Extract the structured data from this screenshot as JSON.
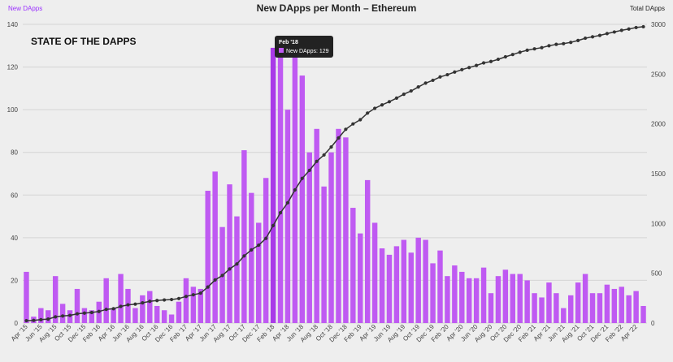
{
  "chart_data": {
    "type": "bar+line",
    "title": "New DApps per Month – Ethereum",
    "logo_text": "STATE OF THE DAPPS",
    "left_axis": {
      "label": "New DApps",
      "ylim": [
        0,
        140
      ],
      "ticks": [
        "0",
        "20",
        "40",
        "60",
        "80",
        "100",
        "120",
        "140"
      ]
    },
    "right_axis": {
      "label": "Total DApps",
      "ylim": [
        0,
        3000
      ],
      "ticks": [
        "0",
        "500",
        "1000",
        "1500",
        "2000",
        "2500",
        "3000"
      ]
    },
    "categories": [
      "Apr '15",
      "May '15",
      "Jun '15",
      "Jul '15",
      "Aug '15",
      "Sep '15",
      "Oct '15",
      "Nov '15",
      "Dec '15",
      "Jan '16",
      "Feb '16",
      "Mar '16",
      "Apr '16",
      "May '16",
      "Jun '16",
      "Jul '16",
      "Aug '16",
      "Sep '16",
      "Oct '16",
      "Nov '16",
      "Dec '16",
      "Jan '17",
      "Feb '17",
      "Mar '17",
      "Apr '17",
      "May '17",
      "Jun '17",
      "Jul '17",
      "Aug '17",
      "Sep '17",
      "Oct '17",
      "Nov '17",
      "Dec '17",
      "Jan '18",
      "Feb '18",
      "Mar '18",
      "Apr '18",
      "May '18",
      "Jun '18",
      "Jul '18",
      "Aug '18",
      "Sep '18",
      "Oct '18",
      "Nov '18",
      "Dec '18",
      "Jan '19",
      "Feb '19",
      "Mar '19",
      "Apr '19",
      "May '19",
      "Jun '19",
      "Jul '19",
      "Aug '19",
      "Sep '19",
      "Oct '19",
      "Nov '19",
      "Dec '19",
      "Jan '20",
      "Feb '20",
      "Mar '20",
      "Apr '20",
      "May '20",
      "Jun '20",
      "Jul '20",
      "Aug '20",
      "Sep '20",
      "Oct '20",
      "Nov '20",
      "Dec '20",
      "Jan '21",
      "Feb '21",
      "Mar '21",
      "Apr '21",
      "May '21",
      "Jun '21",
      "Jul '21",
      "Aug '21",
      "Sep '21",
      "Oct '21",
      "Nov '21",
      "Dec '21",
      "Jan '22",
      "Feb '22",
      "Mar '22",
      "Apr '22",
      "May '22"
    ],
    "x_tick_labels": [
      "Apr '15",
      "Jun '15",
      "Aug '15",
      "Oct '15",
      "Dec '15",
      "Feb '16",
      "Apr '16",
      "Jun '16",
      "Aug '16",
      "Oct '16",
      "Dec '16",
      "Feb '17",
      "Apr '17",
      "Jun '17",
      "Aug '17",
      "Oct '17",
      "Dec '17",
      "Feb '18",
      "Apr '18",
      "Jun '18",
      "Aug '18",
      "Oct '18",
      "Dec '18",
      "Feb '19",
      "Apr '19",
      "Jun '19",
      "Aug '19",
      "Oct '19",
      "Dec '19",
      "Feb '20",
      "Apr '20",
      "Jun '20",
      "Aug '20",
      "Oct '20",
      "Dec '20",
      "Feb '21",
      "Apr '21",
      "Jun '21",
      "Aug '21",
      "Oct '21",
      "Dec '21",
      "Feb '22",
      "Apr '22"
    ],
    "series": [
      {
        "name": "New DApps",
        "axis": "left",
        "chart": "bar",
        "color": "#bf5af2",
        "values": [
          24,
          3,
          7,
          6,
          22,
          9,
          6,
          16,
          7,
          6,
          10,
          21,
          7,
          23,
          16,
          7,
          13,
          15,
          8,
          6,
          4,
          10,
          21,
          17,
          16,
          62,
          71,
          45,
          65,
          50,
          81,
          61,
          47,
          68,
          129,
          129,
          100,
          129,
          116,
          80,
          91,
          64,
          80,
          91,
          87,
          54,
          42,
          67,
          47,
          35,
          32,
          36,
          39,
          33,
          40,
          39,
          28,
          34,
          22,
          27,
          24,
          21,
          21,
          26,
          14,
          22,
          25,
          23,
          23,
          20,
          14,
          12,
          19,
          14,
          7,
          13,
          19,
          23,
          14,
          14,
          18,
          16,
          17,
          13,
          15,
          8
        ]
      },
      {
        "name": "Total DApps",
        "axis": "right",
        "chart": "line",
        "color": "#333333",
        "values": [
          24,
          27,
          34,
          40,
          62,
          71,
          77,
          93,
          100,
          106,
          116,
          137,
          144,
          167,
          183,
          190,
          203,
          218,
          226,
          232,
          236,
          246,
          267,
          284,
          300,
          362,
          433,
          478,
          543,
          593,
          674,
          735,
          782,
          850,
          979,
          1108,
          1208,
          1337,
          1453,
          1533,
          1624,
          1688,
          1768,
          1859,
          1946,
          2000,
          2042,
          2109,
          2156,
          2191,
          2223,
          2259,
          2298,
          2331,
          2371,
          2410,
          2438,
          2472,
          2494,
          2521,
          2545,
          2566,
          2587,
          2613,
          2627,
          2649,
          2674,
          2697,
          2720,
          2740,
          2754,
          2766,
          2785,
          2799,
          2806,
          2819,
          2838,
          2861,
          2875,
          2889,
          2907,
          2923,
          2940,
          2953,
          2968,
          2976
        ]
      }
    ],
    "tooltip": {
      "title": "Feb '18",
      "label": "New DApps: 129",
      "category_index": 34
    },
    "grid": true,
    "legend": "none"
  }
}
